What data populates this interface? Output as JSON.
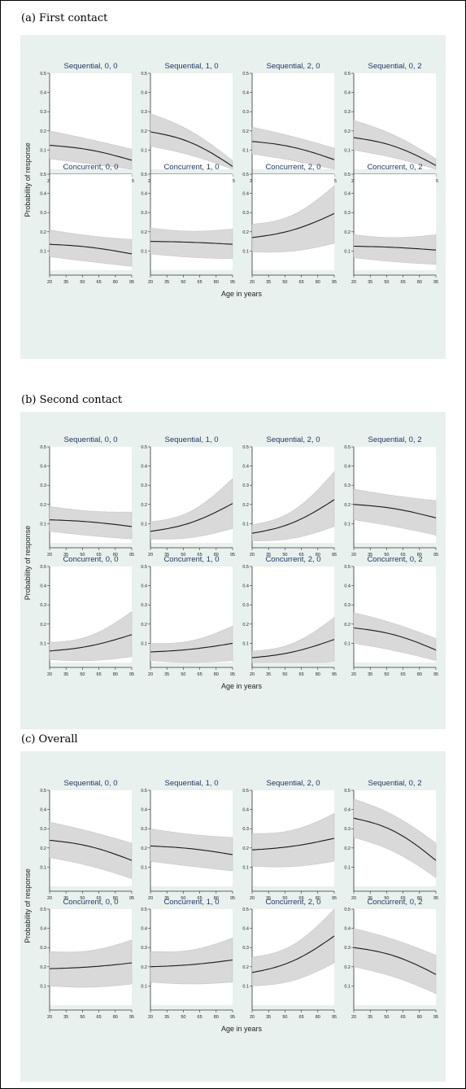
{
  "sections": [
    {
      "title": "(a) First contact"
    },
    {
      "title": "(b) Second contact"
    },
    {
      "title": "(c) Overall"
    }
  ],
  "colors": {
    "panel_bg": "#e9f1ef",
    "plot_bg": "#ffffff",
    "band_fill": "#d9d9d9",
    "band_edge": "#a6a6a6",
    "line": "#1a1a1a",
    "subtitle": "#1f3864"
  },
  "chart_data": [
    {
      "type": "line",
      "title": "(a) First contact",
      "ylabel": "Probability of response",
      "xlabel": "Age in years",
      "x_ticks": [
        20,
        35,
        50,
        65,
        80,
        95
      ],
      "y_ticks": [
        0.1,
        0.2,
        0.3,
        0.4,
        0.5
      ],
      "xlim": [
        20,
        95
      ],
      "ylim": [
        0,
        0.5
      ],
      "band": "95% CI (shaded)",
      "panels": [
        {
          "title": "Sequential, 0, 0",
          "x": [
            20,
            95
          ],
          "fit": [
            0.125,
            0.047
          ],
          "ci_low": [
            0.055,
            0.0
          ],
          "ci_high": [
            0.2,
            0.105
          ]
        },
        {
          "title": "Sequential, 1, 0",
          "x": [
            20,
            95
          ],
          "fit": [
            0.195,
            0.015
          ],
          "ci_low": [
            0.12,
            0.0
          ],
          "ci_high": [
            0.29,
            0.045
          ]
        },
        {
          "title": "Sequential, 2, 0",
          "x": [
            20,
            95
          ],
          "fit": [
            0.145,
            0.05
          ],
          "ci_low": [
            0.08,
            0.0
          ],
          "ci_high": [
            0.22,
            0.11
          ]
        },
        {
          "title": "Sequential, 0, 2",
          "x": [
            20,
            95
          ],
          "fit": [
            0.165,
            0.02
          ],
          "ci_low": [
            0.1,
            0.0
          ],
          "ci_high": [
            0.255,
            0.055
          ]
        },
        {
          "title": "Concurrent, 0, 0",
          "x": [
            20,
            95
          ],
          "fit": [
            0.135,
            0.085
          ],
          "ci_low": [
            0.07,
            0.02
          ],
          "ci_high": [
            0.21,
            0.16
          ]
        },
        {
          "title": "Concurrent, 1, 0",
          "x": [
            20,
            95
          ],
          "fit": [
            0.15,
            0.135
          ],
          "ci_low": [
            0.085,
            0.06
          ],
          "ci_high": [
            0.22,
            0.215
          ]
        },
        {
          "title": "Concurrent, 2, 0",
          "x": [
            20,
            95
          ],
          "fit": [
            0.17,
            0.295
          ],
          "ci_low": [
            0.095,
            0.14
          ],
          "ci_high": [
            0.24,
            0.44
          ]
        },
        {
          "title": "Concurrent, 0, 2",
          "x": [
            20,
            95
          ],
          "fit": [
            0.125,
            0.105
          ],
          "ci_low": [
            0.065,
            0.03
          ],
          "ci_high": [
            0.185,
            0.185
          ]
        }
      ]
    },
    {
      "type": "line",
      "title": "(b) Second contact",
      "ylabel": "Probability of response",
      "xlabel": "Age in years",
      "x_ticks": [
        20,
        35,
        50,
        65,
        80,
        95
      ],
      "y_ticks": [
        0.1,
        0.2,
        0.3,
        0.4,
        0.5
      ],
      "xlim": [
        20,
        95
      ],
      "ylim": [
        0,
        0.5
      ],
      "band": "95% CI (shaded)",
      "panels": [
        {
          "title": "Sequential, 0, 0",
          "x": [
            20,
            95
          ],
          "fit": [
            0.12,
            0.085
          ],
          "ci_low": [
            0.06,
            0.02
          ],
          "ci_high": [
            0.19,
            0.16
          ]
        },
        {
          "title": "Sequential, 1, 0",
          "x": [
            20,
            95
          ],
          "fit": [
            0.06,
            0.205
          ],
          "ci_low": [
            0.02,
            0.075
          ],
          "ci_high": [
            0.11,
            0.335
          ]
        },
        {
          "title": "Sequential, 2, 0",
          "x": [
            20,
            95
          ],
          "fit": [
            0.05,
            0.225
          ],
          "ci_low": [
            0.01,
            0.085
          ],
          "ci_high": [
            0.095,
            0.37
          ]
        },
        {
          "title": "Sequential, 0, 2",
          "x": [
            20,
            95
          ],
          "fit": [
            0.2,
            0.13
          ],
          "ci_low": [
            0.12,
            0.04
          ],
          "ci_high": [
            0.28,
            0.22
          ]
        },
        {
          "title": "Concurrent, 0, 0",
          "x": [
            20,
            95
          ],
          "fit": [
            0.06,
            0.145
          ],
          "ci_low": [
            0.015,
            0.03
          ],
          "ci_high": [
            0.105,
            0.265
          ]
        },
        {
          "title": "Concurrent, 1, 0",
          "x": [
            20,
            95
          ],
          "fit": [
            0.055,
            0.1
          ],
          "ci_low": [
            0.01,
            0.01
          ],
          "ci_high": [
            0.1,
            0.19
          ]
        },
        {
          "title": "Concurrent, 2, 0",
          "x": [
            20,
            95
          ],
          "fit": [
            0.025,
            0.12
          ],
          "ci_low": [
            0.0,
            0.005
          ],
          "ci_high": [
            0.06,
            0.235
          ]
        },
        {
          "title": "Concurrent, 0, 2",
          "x": [
            20,
            95
          ],
          "fit": [
            0.18,
            0.065
          ],
          "ci_low": [
            0.1,
            0.01
          ],
          "ci_high": [
            0.26,
            0.125
          ]
        }
      ]
    },
    {
      "type": "line",
      "title": "(c) Overall",
      "ylabel": "Probability of response",
      "xlabel": "Age in years",
      "x_ticks": [
        20,
        35,
        50,
        65,
        80,
        95
      ],
      "y_ticks": [
        0.1,
        0.2,
        0.3,
        0.4,
        0.5
      ],
      "xlim": [
        20,
        95
      ],
      "ylim": [
        0,
        0.5
      ],
      "band": "95% CI (shaded)",
      "panels": [
        {
          "title": "Sequential, 0, 0",
          "x": [
            20,
            95
          ],
          "fit": [
            0.24,
            0.135
          ],
          "ci_low": [
            0.15,
            0.04
          ],
          "ci_high": [
            0.335,
            0.225
          ]
        },
        {
          "title": "Sequential, 1, 0",
          "x": [
            20,
            95
          ],
          "fit": [
            0.21,
            0.165
          ],
          "ci_low": [
            0.13,
            0.08
          ],
          "ci_high": [
            0.3,
            0.255
          ]
        },
        {
          "title": "Sequential, 2, 0",
          "x": [
            20,
            95
          ],
          "fit": [
            0.19,
            0.25
          ],
          "ci_low": [
            0.105,
            0.13
          ],
          "ci_high": [
            0.275,
            0.38
          ]
        },
        {
          "title": "Sequential, 0, 2",
          "x": [
            20,
            95
          ],
          "fit": [
            0.355,
            0.135
          ],
          "ci_low": [
            0.255,
            0.045
          ],
          "ci_high": [
            0.455,
            0.225
          ]
        },
        {
          "title": "Concurrent, 0, 0",
          "x": [
            20,
            95
          ],
          "fit": [
            0.19,
            0.22
          ],
          "ci_low": [
            0.1,
            0.11
          ],
          "ci_high": [
            0.28,
            0.34
          ]
        },
        {
          "title": "Concurrent, 1, 0",
          "x": [
            20,
            95
          ],
          "fit": [
            0.2,
            0.235
          ],
          "ci_low": [
            0.12,
            0.12
          ],
          "ci_high": [
            0.28,
            0.35
          ]
        },
        {
          "title": "Concurrent, 2, 0",
          "x": [
            20,
            95
          ],
          "fit": [
            0.17,
            0.36
          ],
          "ci_low": [
            0.1,
            0.22
          ],
          "ci_high": [
            0.25,
            0.5
          ]
        },
        {
          "title": "Concurrent, 0, 2",
          "x": [
            20,
            95
          ],
          "fit": [
            0.3,
            0.16
          ],
          "ci_low": [
            0.2,
            0.06
          ],
          "ci_high": [
            0.4,
            0.26
          ]
        }
      ]
    }
  ]
}
